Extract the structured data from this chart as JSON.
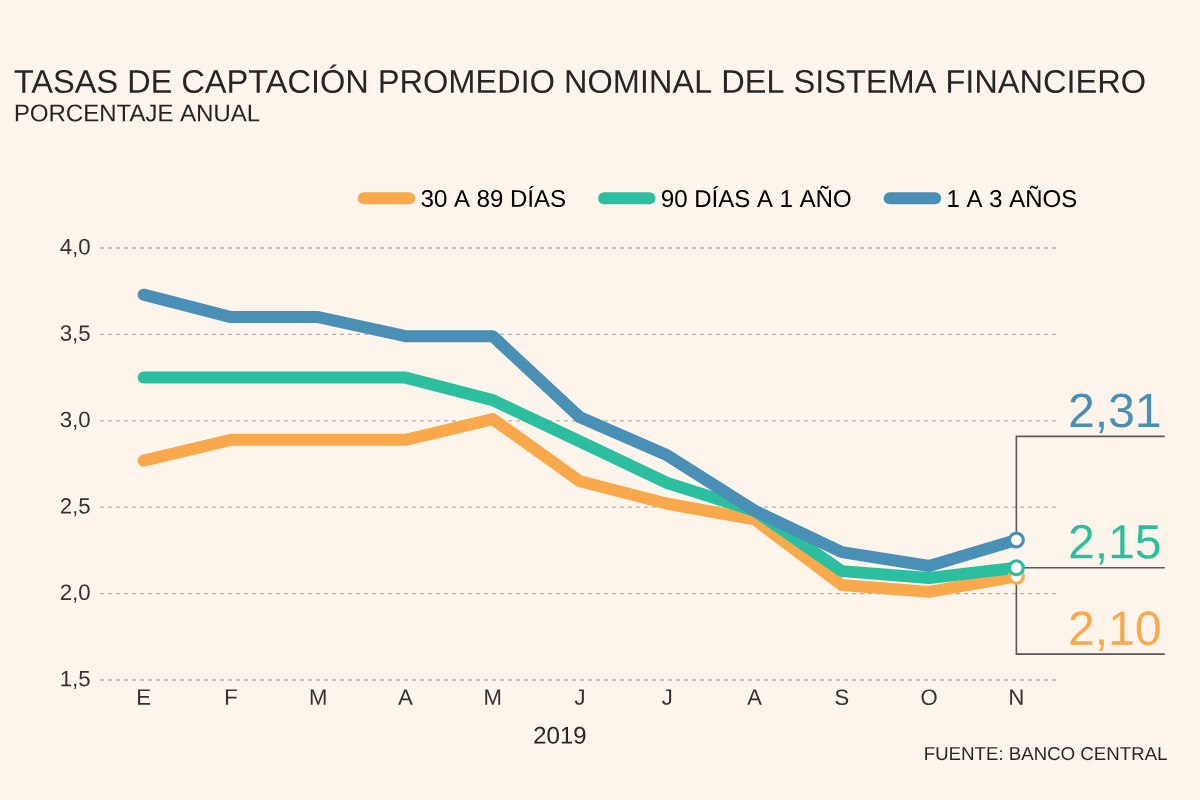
{
  "chart_data": {
    "type": "line",
    "title": "TASAS DE CAPTACIÓN PROMEDIO NOMINAL DEL SISTEMA FINANCIERO",
    "subtitle": "PORCENTAJE ANUAL",
    "xlabel": "2019",
    "categories": [
      "E",
      "F",
      "M",
      "A",
      "M",
      "J",
      "J",
      "A",
      "S",
      "O",
      "N"
    ],
    "series": [
      {
        "name": "30 A 89 DÍAS",
        "color": "#f9a94b",
        "values": [
          2.77,
          2.89,
          2.89,
          2.89,
          3.01,
          2.65,
          2.52,
          2.43,
          2.05,
          2.01,
          2.1
        ],
        "value_labels": [
          null,
          null,
          null,
          null,
          null,
          null,
          null,
          null,
          null,
          null,
          "2,10"
        ]
      },
      {
        "name": "90 DÍAS A 1 AÑO",
        "color": "#2bbfa0",
        "values": [
          3.25,
          3.25,
          3.25,
          3.25,
          3.12,
          2.88,
          2.64,
          2.48,
          2.13,
          2.09,
          2.15
        ],
        "value_labels": [
          null,
          null,
          null,
          null,
          null,
          null,
          null,
          null,
          null,
          null,
          "2,15"
        ]
      },
      {
        "name": "1 A 3 AÑOS",
        "color": "#4a8fb5",
        "values": [
          3.73,
          3.6,
          3.6,
          3.49,
          3.49,
          3.02,
          2.8,
          2.48,
          2.24,
          2.16,
          2.31
        ],
        "value_labels": [
          null,
          null,
          null,
          null,
          null,
          null,
          null,
          null,
          null,
          null,
          "2,31"
        ]
      }
    ],
    "ylim": [
      1.5,
      4.0
    ],
    "yticks": [
      {
        "value": 1.5,
        "label": "1,5"
      },
      {
        "value": 2.0,
        "label": "2,0"
      },
      {
        "value": 2.5,
        "label": "2,5"
      },
      {
        "value": 3.0,
        "label": "3,0"
      },
      {
        "value": 3.5,
        "label": "3,5"
      },
      {
        "value": 4.0,
        "label": "4,0"
      }
    ],
    "grid": "y",
    "legend": "top",
    "line_style": "solid",
    "annotations": [
      "FUENTE: BANCO CENTRAL"
    ]
  }
}
